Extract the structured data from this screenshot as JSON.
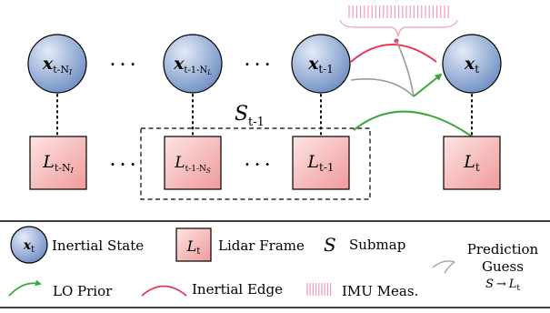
{
  "nodes": {
    "states": [
      {
        "main": "x",
        "sub": "t-N",
        "subsub": "I"
      },
      {
        "main": "x",
        "sub": "t-1-N",
        "subsub": "L"
      },
      {
        "main": "x",
        "sub": "t-1",
        "subsub": ""
      },
      {
        "main": "x",
        "sub": "t",
        "subsub": ""
      }
    ],
    "frames": [
      {
        "main": "L",
        "sub": "t-N",
        "subsub": "I"
      },
      {
        "main": "L",
        "sub": "t-1-N",
        "subsub": "S"
      },
      {
        "main": "L",
        "sub": "t-1",
        "subsub": ""
      },
      {
        "main": "L",
        "sub": "t",
        "subsub": ""
      }
    ],
    "ellipsis": "· · ·"
  },
  "submap": {
    "main": "S",
    "sub": "t-1"
  },
  "legend": {
    "inertial_state": {
      "symbol_main": "x",
      "symbol_sub": "t",
      "label": "Inertial State"
    },
    "lidar_frame": {
      "symbol_main": "L",
      "symbol_sub": "t",
      "label": "Lidar Frame"
    },
    "submap": {
      "symbol": "S",
      "label": "Submap"
    },
    "prediction": {
      "line1": "Prediction",
      "line2": "Guess",
      "formula_left": "S",
      "arrow": "→",
      "formula_right": "L",
      "formula_sub": "t"
    },
    "lo_prior": {
      "label": "LO Prior"
    },
    "inertial_edge": {
      "label": "Inertial Edge"
    },
    "imu": {
      "label": "IMU Meas."
    }
  },
  "colors": {
    "state_fill_light": "#e4ebf7",
    "state_fill_dark": "#6f8fc4",
    "frame_fill_light": "#fde4e4",
    "frame_fill_dark": "#f09a9a",
    "inertial_edge": "#e8385a",
    "imu_ticks": "#f0a0b0",
    "lo_prior": "#3aa83a",
    "prediction_gray": "#9a9a9a"
  }
}
